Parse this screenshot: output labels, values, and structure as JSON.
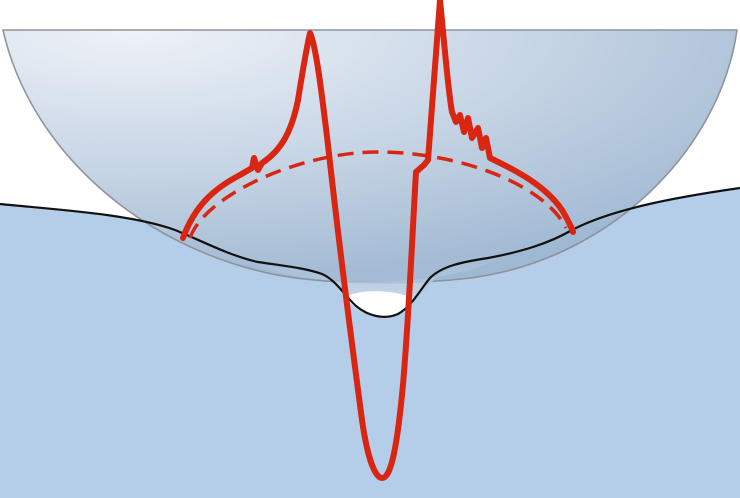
{
  "colors": {
    "background": "#ffffff",
    "substrate_fill": "#b4cde8",
    "surface_line": "#111111",
    "sphere_light": "#eef2f8",
    "sphere_dark": "#9fb8d2",
    "sphere_edge": "#8a8f96",
    "cavity_fill": "#ffffff",
    "pressure_curve": "#d92612"
  },
  "elements": {
    "substrate": "substrate",
    "sphere": "indenter-sphere",
    "contact_circle": "contact-ellipse-dashed",
    "pressure_profile": "pressure-profile-curve"
  }
}
